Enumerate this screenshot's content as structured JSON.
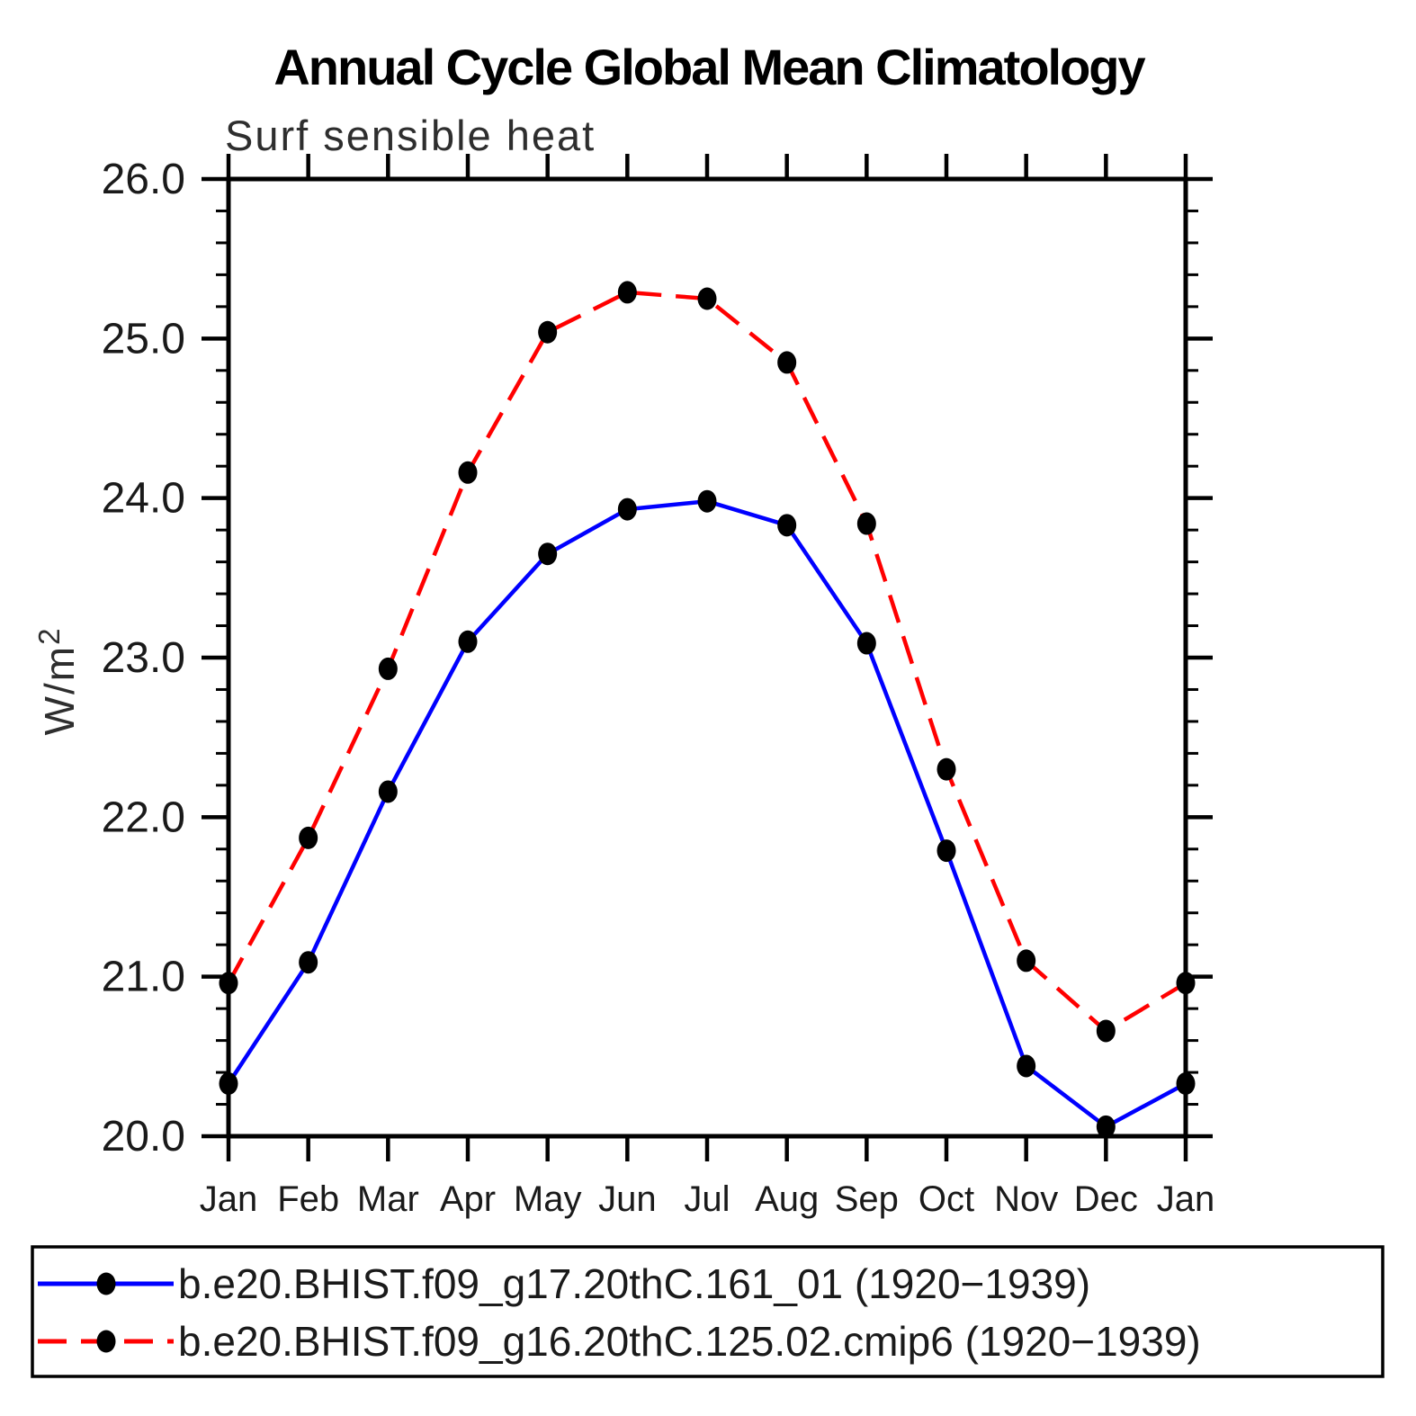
{
  "title": "Annual Cycle Global Mean Climatology",
  "subtitle": "Surf sensible heat",
  "ylabel_base": "W/m",
  "ylabel_exp": "2",
  "chart_data": {
    "type": "line",
    "title": "Annual Cycle Global Mean Climatology",
    "subtitle": "Surf sensible heat",
    "ylabel": "W/m²",
    "xlabel": "",
    "categories": [
      "Jan",
      "Feb",
      "Mar",
      "Apr",
      "May",
      "Jun",
      "Jul",
      "Aug",
      "Sep",
      "Oct",
      "Nov",
      "Dec",
      "Jan"
    ],
    "ylim": [
      20.0,
      26.0
    ],
    "ytick_interval": 1.0,
    "yminor_interval": 0.2,
    "ytick_labels": [
      "20.0",
      "21.0",
      "22.0",
      "23.0",
      "24.0",
      "25.0",
      "26.0"
    ],
    "grid": false,
    "legend_position": "bottom",
    "series": [
      {
        "name": "b.e20.BHIST.f09_g17.20thC.161_01 (1920−1939)",
        "color": "#0000ff",
        "style": "solid",
        "marker": "filled-black-dot",
        "values": [
          20.33,
          21.09,
          22.16,
          23.1,
          23.65,
          23.93,
          23.98,
          23.83,
          23.09,
          21.79,
          20.44,
          20.06,
          20.33
        ]
      },
      {
        "name": "b.e20.BHIST.f09_g16.20thC.125.02.cmip6 (1920−1939)",
        "color": "#ff0000",
        "style": "dashed",
        "marker": "filled-black-dot",
        "values": [
          20.96,
          21.87,
          22.93,
          24.16,
          25.04,
          25.29,
          25.25,
          24.85,
          23.84,
          22.3,
          21.1,
          20.66,
          20.96
        ]
      }
    ],
    "colors": {
      "axis": "#000000",
      "marker": "#000000",
      "background": "#ffffff"
    }
  }
}
